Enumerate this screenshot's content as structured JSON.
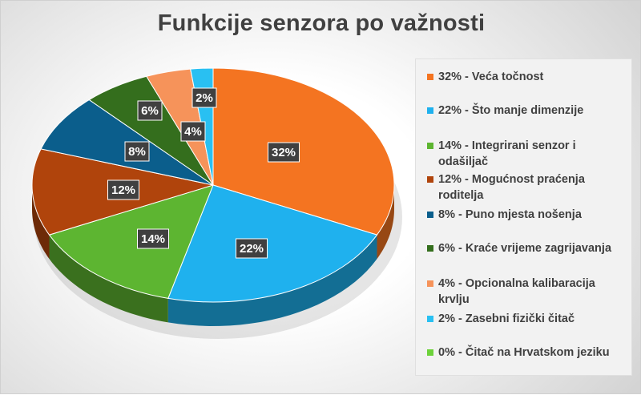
{
  "chart_data": {
    "type": "pie",
    "title": "Funkcije senzora po važnosti",
    "slices": [
      {
        "label": "32%",
        "legend": "32% - Veća točnost",
        "value": 32,
        "color": "#f47421"
      },
      {
        "label": "22%",
        "legend": "22% - Što manje dimenzije",
        "value": 22,
        "color": "#1fb1ee"
      },
      {
        "label": "14%",
        "legend": "14% - Integrirani senzor i odašiljač",
        "value": 14,
        "color": "#5db531"
      },
      {
        "label": "12%",
        "legend": "12% - Mogućnost praćenja roditelja",
        "value": 12,
        "color": "#b0440c"
      },
      {
        "label": "8%",
        "legend": "8% - Puno mjesta nošenja",
        "value": 8,
        "color": "#0b5e8c"
      },
      {
        "label": "6%",
        "legend": "6% - Kraće vrijeme zagrijavanja",
        "value": 6,
        "color": "#346e1d"
      },
      {
        "label": "4%",
        "legend": "4% - Opcionalna kalibaracija krvlju",
        "value": 4,
        "color": "#f6935a"
      },
      {
        "label": "2%",
        "legend": "2% - Zasebni fizički čitač",
        "value": 2,
        "color": "#29c0f2"
      },
      {
        "label": "",
        "legend": "0% - Čitač na Hrvatskom jeziku",
        "value": 0,
        "color": "#6dd23a"
      }
    ],
    "legend_position": "right"
  }
}
